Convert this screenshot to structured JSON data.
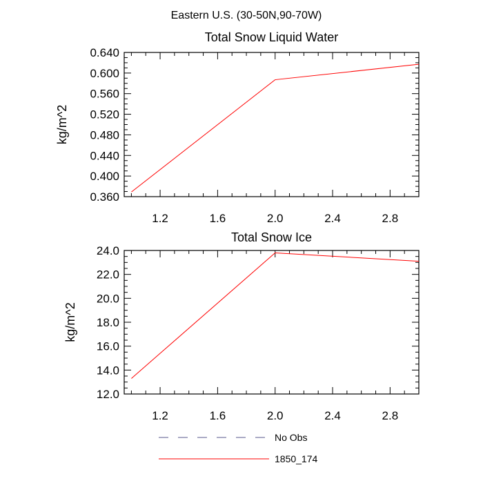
{
  "figure_title": "Eastern U.S. (30-50N,90-70W)",
  "chart_data": [
    {
      "type": "line",
      "title": "Total Snow Liquid Water",
      "xlabel": "",
      "ylabel": "kg/m^2",
      "xlim": [
        0.95,
        3.0
      ],
      "ylim": [
        0.36,
        0.64
      ],
      "x_ticks": [
        1.2,
        1.6,
        2.0,
        2.4,
        2.8
      ],
      "x_tick_labels": [
        "1.2",
        "1.6",
        "2.0",
        "2.4",
        "2.8"
      ],
      "y_ticks": [
        0.36,
        0.4,
        0.44,
        0.48,
        0.52,
        0.56,
        0.6,
        0.64
      ],
      "y_tick_labels": [
        "0.360",
        "0.400",
        "0.440",
        "0.480",
        "0.520",
        "0.560",
        "0.600",
        "0.640"
      ],
      "series": [
        {
          "name": "1850_174",
          "color": "#ff0000",
          "x": [
            1.0,
            2.0,
            3.0
          ],
          "values": [
            0.369,
            0.587,
            0.617
          ]
        }
      ]
    },
    {
      "type": "line",
      "title": "Total Snow Ice",
      "xlabel": "",
      "ylabel": "kg/m^2",
      "xlim": [
        0.95,
        3.0
      ],
      "ylim": [
        12.0,
        24.0
      ],
      "x_ticks": [
        1.2,
        1.6,
        2.0,
        2.4,
        2.8
      ],
      "x_tick_labels": [
        "1.2",
        "1.6",
        "2.0",
        "2.4",
        "2.8"
      ],
      "y_ticks": [
        12,
        14,
        16,
        18,
        20,
        22,
        24
      ],
      "y_tick_labels": [
        "12.0",
        "14.0",
        "16.0",
        "18.0",
        "20.0",
        "22.0",
        "24.0"
      ],
      "series": [
        {
          "name": "1850_174",
          "color": "#ff0000",
          "x": [
            1.0,
            2.0,
            3.0
          ],
          "values": [
            13.3,
            23.8,
            23.1
          ]
        }
      ]
    }
  ],
  "legend": {
    "placement": "bottom-center",
    "entries": [
      {
        "label": "No Obs",
        "color": "#5a5a8c",
        "style": "dashed"
      },
      {
        "label": "1850_174",
        "color": "#ff0000",
        "style": "solid"
      }
    ]
  }
}
